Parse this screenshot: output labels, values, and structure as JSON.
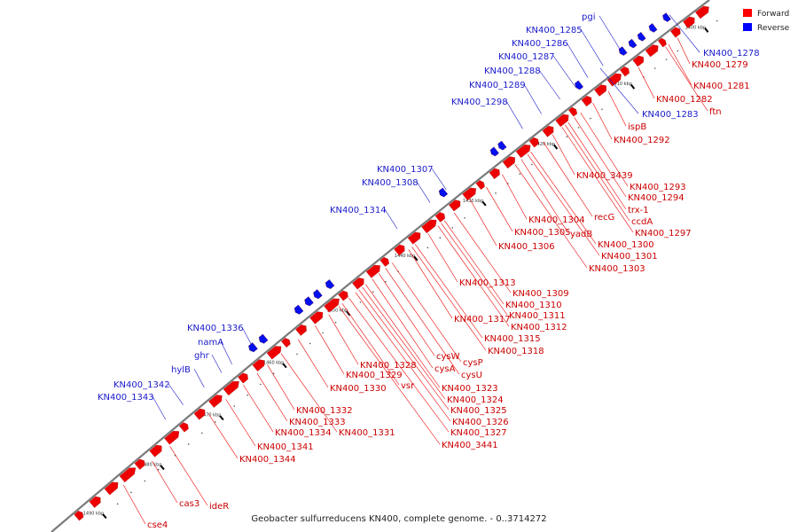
{
  "legend": [
    {
      "label": "Forward",
      "color": "#ff0000"
    },
    {
      "label": "Reverse",
      "color": "#0000ff"
    }
  ],
  "footer": "Geobacter sulfurreducens KN400, complete genome. - 0..3714272",
  "ticks": [
    "1400 kbp",
    "1410 kbp",
    "1420 kbp",
    "1430 kbp",
    "1440 kbp",
    "1450 kbp",
    "1460 kbp",
    "1470 kbp",
    "1480 kbp",
    "1490 kbp"
  ],
  "reverse_labels": [
    "pgi",
    "KN400_1285",
    "KN400_1286",
    "KN400_1287",
    "KN400_1288",
    "KN400_1289",
    "KN400_1298",
    "KN400_1307",
    "KN400_1308",
    "KN400_1314",
    "KN400_1336",
    "namA",
    "ghr",
    "hylB",
    "KN400_1342",
    "KN400_1343",
    "KN400_1278",
    "KN400_1283"
  ],
  "forward_labels": [
    "KN400_1279",
    "KN400_1281",
    "KN400_1282",
    "ftn",
    "ispB",
    "KN400_1292",
    "KN400_3439",
    "KN400_1293",
    "KN400_1294",
    "trx-1",
    "ccdA",
    "KN400_1297",
    "recG",
    "KN400_1304",
    "KN400_1305",
    "yadB",
    "KN400_1306",
    "KN400_1300",
    "KN400_1301",
    "KN400_1303",
    "KN400_1313",
    "KN400_1309",
    "KN400_1310",
    "KN400_1311",
    "KN400_1312",
    "KN400_1317",
    "KN400_1315",
    "KN400_1318",
    "cysW",
    "cysP",
    "cysA",
    "cysU",
    "KN400_1328",
    "KN400_1329",
    "vsr",
    "KN400_1330",
    "KN400_1323",
    "KN400_1324",
    "KN400_1325",
    "KN400_1326",
    "KN400_1327",
    "KN400_3441",
    "KN400_1332",
    "KN400_1333",
    "KN400_1334",
    "KN400_1331",
    "KN400_1341",
    "KN400_1344",
    "cas3",
    "ideR",
    "cse4"
  ]
}
